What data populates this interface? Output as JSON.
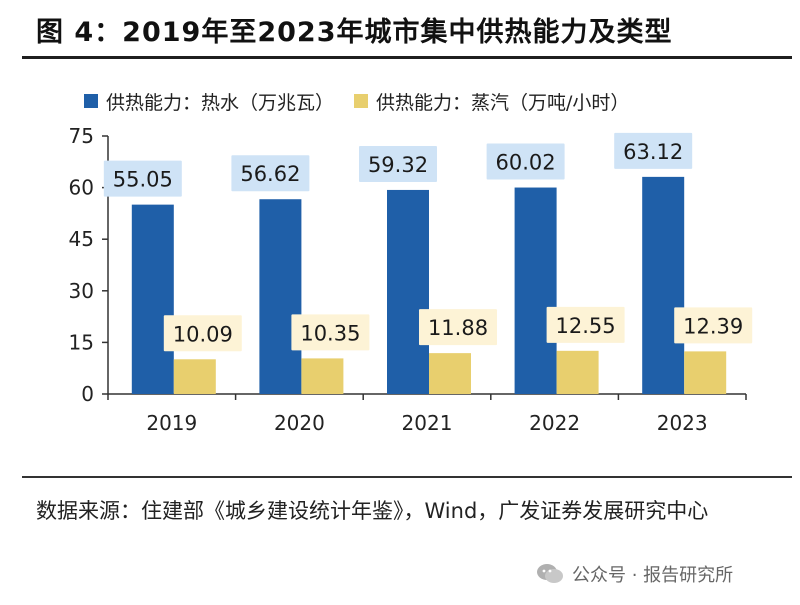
{
  "figure": {
    "title": "图 4：2019年至2023年城市集中供热能力及类型",
    "source": "数据来源：住建部《城乡建设统计年鉴》，Wind，广发证券发展研究中心",
    "watermark": "公众号 · 报告研究所",
    "watermark_icon": "wechat-icon"
  },
  "colors": {
    "hot_water": "#1f5fa8",
    "steam": "#e8cf6e",
    "hot_water_label_bg": "#cfe3f6",
    "steam_label_bg": "#fdf3d6",
    "axis": "#333333"
  },
  "chart_data": {
    "type": "bar",
    "categories": [
      "2019",
      "2020",
      "2021",
      "2022",
      "2023"
    ],
    "series": [
      {
        "name": "供热能力：热水（万兆瓦）",
        "values": [
          55.05,
          56.62,
          59.32,
          60.02,
          63.12
        ]
      },
      {
        "name": "供热能力：蒸汽（万吨/小时）",
        "values": [
          10.09,
          10.35,
          11.88,
          12.55,
          12.39
        ]
      }
    ],
    "ylim": [
      0,
      75
    ],
    "yticks": [
      0,
      15,
      30,
      45,
      60,
      75
    ],
    "legend_position": "top",
    "grid": false
  }
}
